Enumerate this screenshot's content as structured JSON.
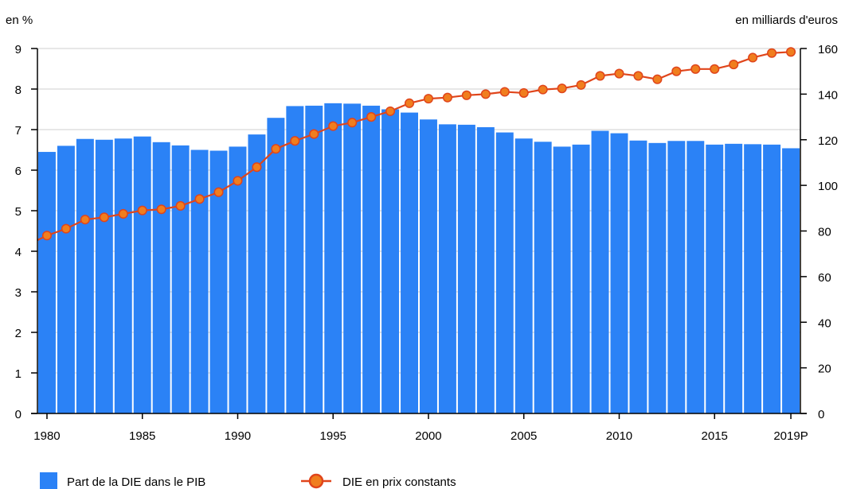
{
  "chart_data": {
    "type": "bar",
    "left_axis_unit": "en %",
    "right_axis_unit": "en milliards d'euros",
    "categories": [
      "1980",
      "1981",
      "1982",
      "1983",
      "1984",
      "1985",
      "1986",
      "1987",
      "1988",
      "1989",
      "1990",
      "1991",
      "1992",
      "1993",
      "1994",
      "1995",
      "1996",
      "1997",
      "1998",
      "1999",
      "2000",
      "2001",
      "2002",
      "2003",
      "2004",
      "2005",
      "2006",
      "2007",
      "2008",
      "2009",
      "2010",
      "2011",
      "2012",
      "2013",
      "2014",
      "2015",
      "2016",
      "2017",
      "2018",
      "2019P"
    ],
    "x_tick_labels": [
      "1980",
      "1985",
      "1990",
      "1995",
      "2000",
      "2005",
      "2010",
      "2015",
      "2019P"
    ],
    "y_left": {
      "min": 0,
      "max": 9,
      "ticks": [
        "0",
        "1",
        "2",
        "3",
        "4",
        "5",
        "6",
        "7",
        "8",
        "9"
      ]
    },
    "y_right": {
      "min": 0,
      "max": 160,
      "ticks": [
        "0",
        "20",
        "40",
        "60",
        "80",
        "100",
        "120",
        "140",
        "160"
      ]
    },
    "grid": "horizontal",
    "legend_position": "bottom",
    "series": [
      {
        "name": "Part de la DIE dans le PIB",
        "type": "bar",
        "axis": "left",
        "color": "#2b82f6",
        "values": [
          6.45,
          6.6,
          6.77,
          6.75,
          6.78,
          6.83,
          6.69,
          6.61,
          6.5,
          6.48,
          6.58,
          6.88,
          7.29,
          7.58,
          7.59,
          7.65,
          7.64,
          7.59,
          7.5,
          7.42,
          7.25,
          7.13,
          7.12,
          7.06,
          6.93,
          6.78,
          6.7,
          6.58,
          6.63,
          6.97,
          6.91,
          6.73,
          6.67,
          6.72,
          6.72,
          6.63,
          6.65,
          6.64,
          6.63,
          6.54
        ]
      },
      {
        "name": "DIE en prix constants",
        "type": "line",
        "axis": "right",
        "color": "#e0451b",
        "marker_color": "#f07e1e",
        "values": [
          78,
          81,
          85,
          86,
          87.5,
          89,
          89.5,
          91,
          94,
          97,
          102,
          108,
          116,
          119.5,
          122.5,
          126,
          127.5,
          130,
          132.5,
          136,
          138,
          138.5,
          139.5,
          140,
          141,
          140.5,
          142,
          142.5,
          144,
          148,
          149,
          148,
          146.5,
          150,
          151,
          151,
          153,
          156,
          158,
          158.5
        ]
      }
    ]
  }
}
